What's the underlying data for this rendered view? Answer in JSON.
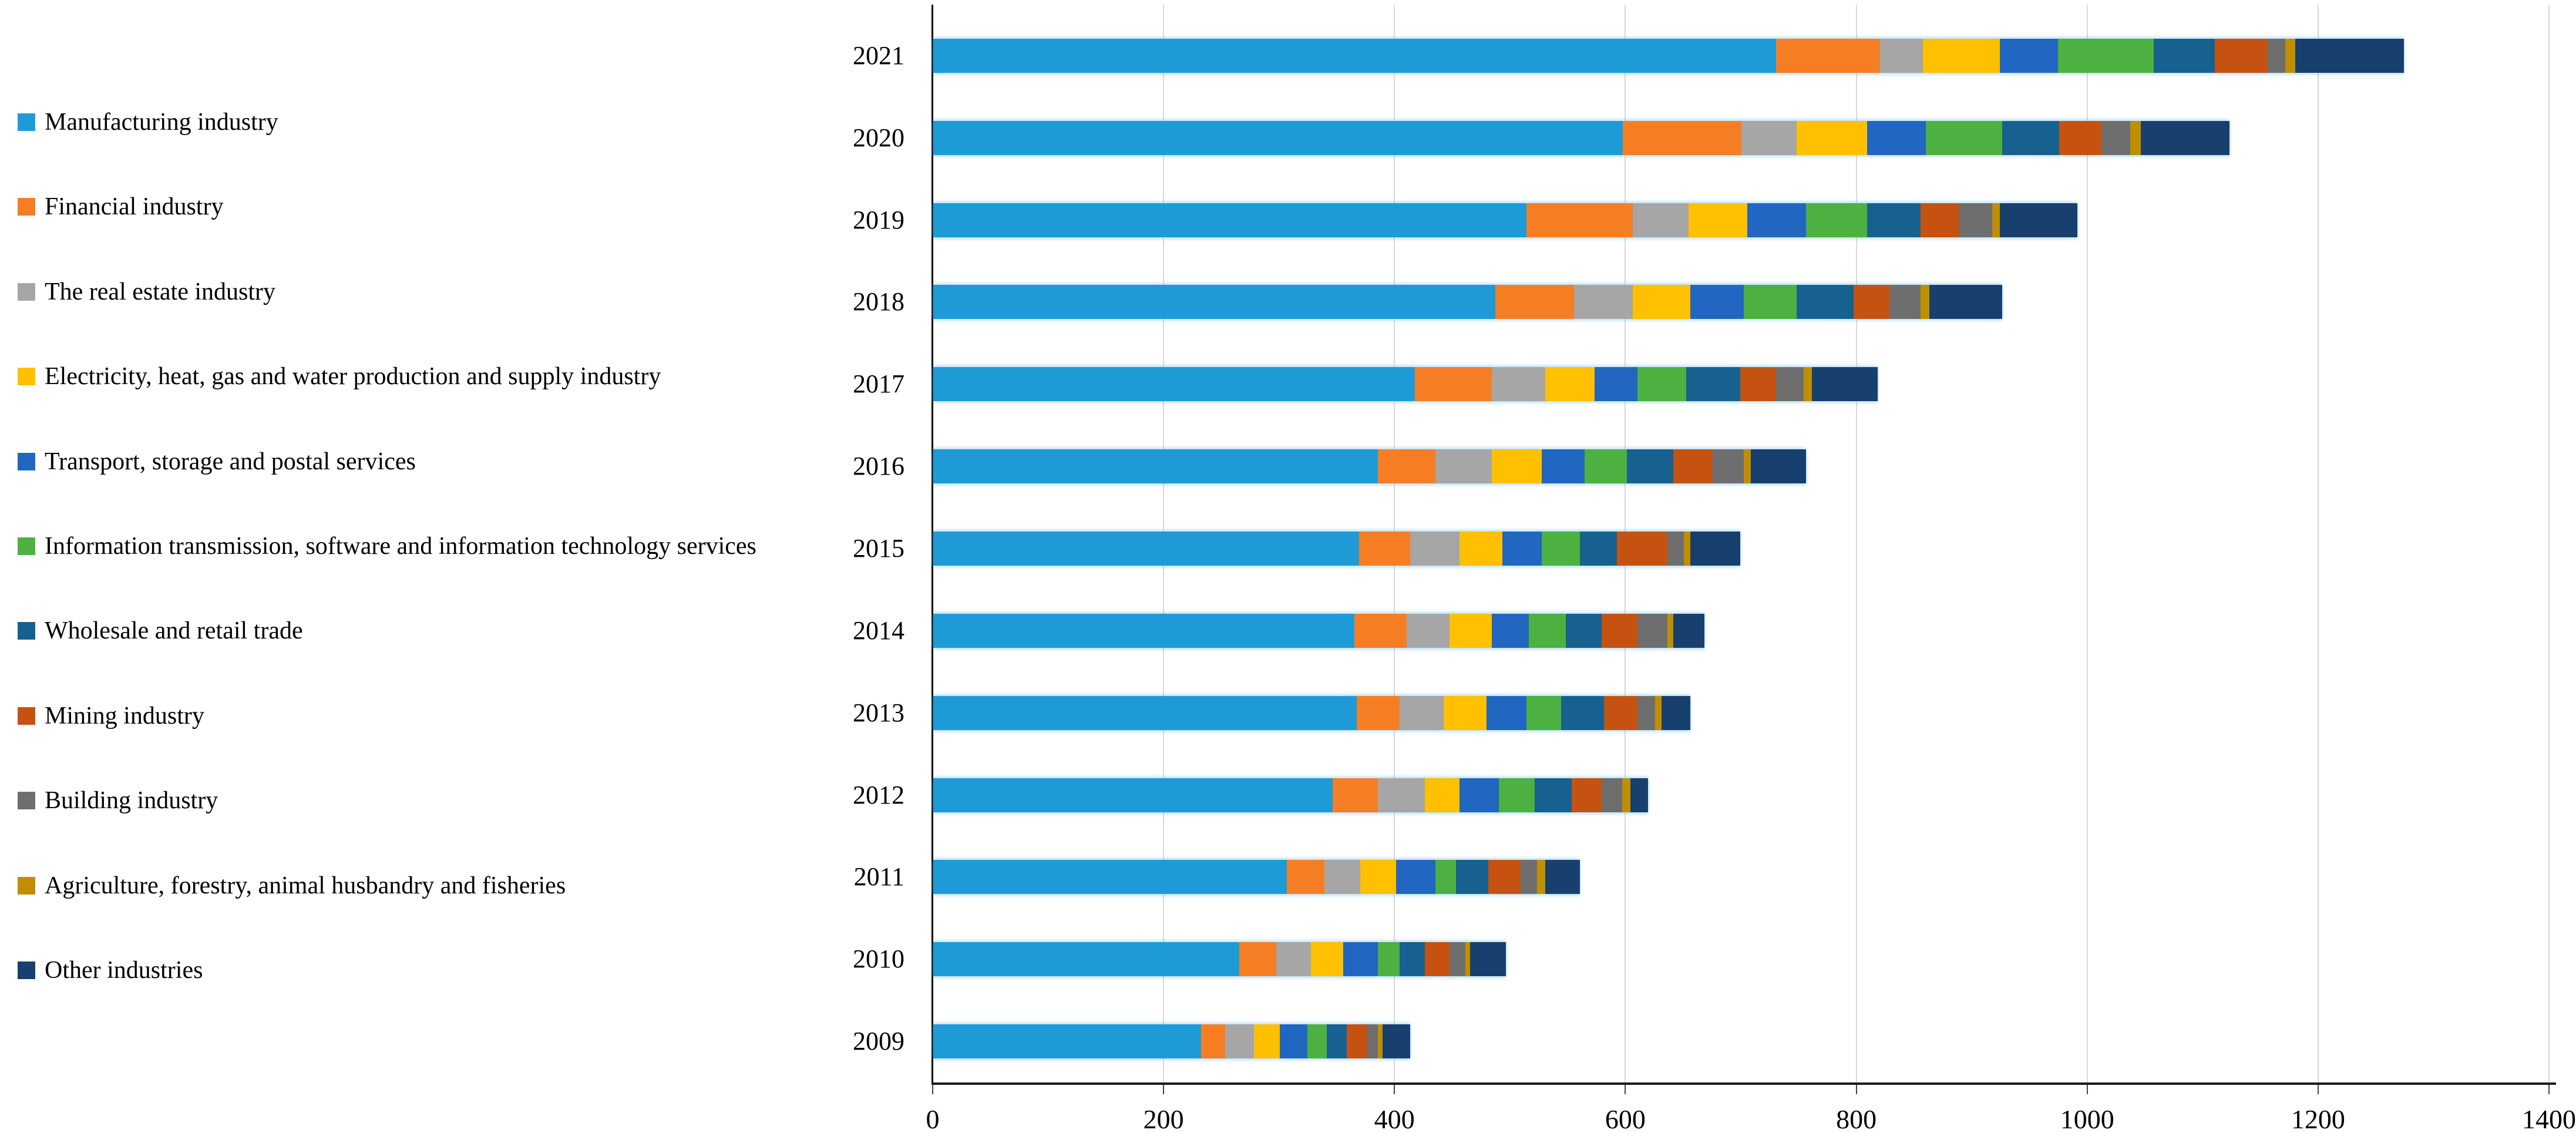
{
  "chart_data": {
    "type": "bar",
    "orientation": "horizontal",
    "stacked": true,
    "grid": true,
    "legend_position": "left",
    "title": "",
    "xlabel": "",
    "ylabel": "",
    "xlim": [
      0,
      1400
    ],
    "x_ticks": [
      "0",
      "200",
      "400",
      "600",
      "800",
      "1000",
      "1200",
      "1400"
    ],
    "categories": [
      "2021",
      "2020",
      "2019",
      "2018",
      "2017",
      "2016",
      "2015",
      "2014",
      "2013",
      "2012",
      "2011",
      "2010",
      "2009"
    ],
    "series": [
      {
        "name": "Manufacturing industry",
        "color": "#1E9BD7",
        "values": [
          730,
          597,
          514,
          487,
          417,
          385,
          369,
          365,
          367,
          346,
          306,
          265,
          232
        ]
      },
      {
        "name": "Financial industry",
        "color": "#F57E25",
        "values": [
          90,
          103,
          92,
          68,
          67,
          50,
          44,
          45,
          37,
          39,
          33,
          32,
          21
        ]
      },
      {
        "name": "The real estate industry",
        "color": "#A6A6A6",
        "values": [
          37,
          48,
          48,
          51,
          46,
          49,
          43,
          37,
          38,
          41,
          31,
          30,
          25
        ]
      },
      {
        "name": "Electricity, heat, gas and water production and supply industry",
        "color": "#FFC000",
        "values": [
          67,
          61,
          51,
          50,
          43,
          43,
          37,
          37,
          37,
          30,
          31,
          28,
          22
        ]
      },
      {
        "name": "Transport, storage and postal services",
        "color": "#2166C0",
        "values": [
          50,
          51,
          51,
          46,
          37,
          37,
          34,
          32,
          35,
          34,
          34,
          30,
          24
        ]
      },
      {
        "name": "Information transmission, software and information technology services",
        "color": "#4CB140",
        "values": [
          83,
          66,
          53,
          46,
          42,
          37,
          33,
          32,
          30,
          31,
          18,
          19,
          17
        ]
      },
      {
        "name": "Wholesale and retail trade",
        "color": "#16618F",
        "values": [
          53,
          49,
          46,
          49,
          47,
          40,
          32,
          31,
          37,
          32,
          28,
          22,
          17
        ]
      },
      {
        "name": "Mining industry",
        "color": "#C55211",
        "values": [
          46,
          37,
          34,
          31,
          31,
          34,
          44,
          31,
          29,
          26,
          28,
          21,
          18
        ]
      },
      {
        "name": "Building industry",
        "color": "#6E6E6E",
        "values": [
          15,
          25,
          28,
          27,
          24,
          27,
          14,
          26,
          15,
          18,
          14,
          14,
          9
        ]
      },
      {
        "name": "Agriculture, forestry, animal husbandry and fisheries",
        "color": "#BF8F00",
        "values": [
          9,
          9,
          7,
          8,
          7,
          6,
          6,
          5,
          6,
          7,
          7,
          4,
          4
        ]
      },
      {
        "name": "Other industries",
        "color": "#17406F",
        "values": [
          94,
          77,
          67,
          63,
          57,
          48,
          43,
          27,
          25,
          15,
          30,
          31,
          24
        ]
      }
    ]
  }
}
